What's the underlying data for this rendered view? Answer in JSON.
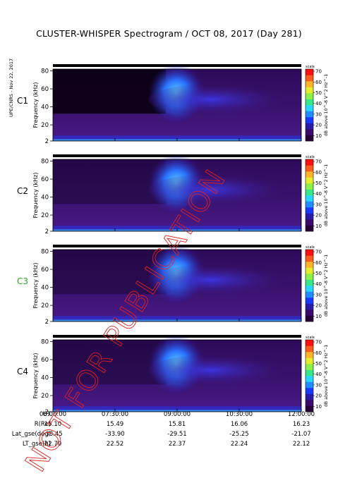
{
  "title": "CLUSTER-WHISPER Spectrogram / OCT 08, 2017 (Day 281)",
  "side_label": "UPE/CNRS - Nov 22, 2017",
  "watermark": "NOT FOR PUBLICATION",
  "chart_data": {
    "type": "heatmap",
    "ylabel": "Frequency (kHz)",
    "y_ticks": [
      "2",
      "20",
      "40",
      "60",
      "80"
    ],
    "ylim": [
      2,
      82
    ],
    "colorbar": {
      "label": "dB above 10^-8 V^2 Hz^-1",
      "top_label": "scale",
      "ticks": [
        "10",
        "20",
        "30",
        "40",
        "50",
        "60",
        "70"
      ],
      "range": [
        5,
        72
      ],
      "colors": [
        "#2a0038",
        "#3d0a6b",
        "#2b1aa8",
        "#1a3aff",
        "#1f8cff",
        "#2ad6ff",
        "#36e88a",
        "#8ff04a",
        "#e8ec2e",
        "#ffb42a",
        "#ff5a1e",
        "#ff1010"
      ]
    },
    "panels": [
      {
        "name": "C1",
        "label_color": "#000000"
      },
      {
        "name": "C2",
        "label_color": "#000000"
      },
      {
        "name": "C3",
        "label_color": "#22aa22"
      },
      {
        "name": "C4",
        "label_color": "#000000"
      }
    ],
    "x_axis": {
      "rows": [
        {
          "label": "UT",
          "values": [
            "06:00:00",
            "07:30:00",
            "09:00:00",
            "10:30:00",
            "12:00:00"
          ]
        },
        {
          "label": "R(Re)",
          "values": [
            "15.10",
            "15.49",
            "15.81",
            "16.06",
            "16.23"
          ]
        },
        {
          "label": "Lat_gse(deg)",
          "values": [
            "-38.45",
            "-33.90",
            "-29.51",
            "-25.25",
            "-21.07"
          ]
        },
        {
          "label": "LT_gse(h)",
          "values": [
            "22.70",
            "22.52",
            "22.37",
            "22.24",
            "22.12"
          ]
        }
      ]
    }
  }
}
